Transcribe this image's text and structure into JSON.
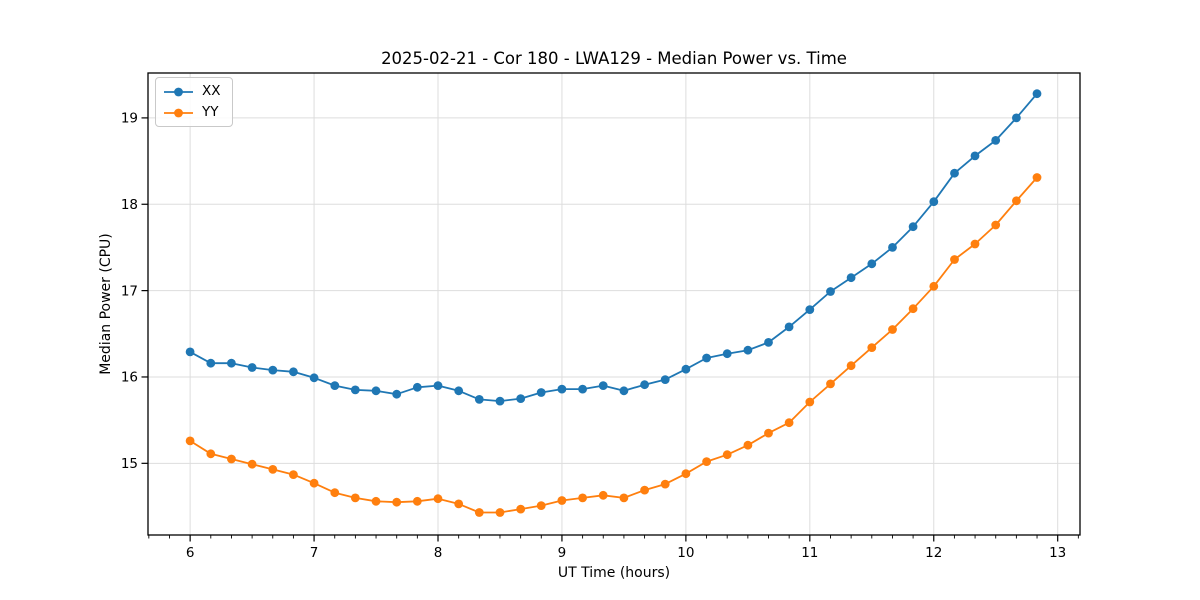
{
  "chart_data": {
    "type": "line",
    "title": "2025-02-21 - Cor 180 - LWA129 - Median Power vs. Time",
    "xlabel": "UT Time (hours)",
    "ylabel": "Median Power (CPU)",
    "x": [
      6.0,
      6.167,
      6.333,
      6.5,
      6.667,
      6.833,
      7.0,
      7.167,
      7.333,
      7.5,
      7.667,
      7.833,
      8.0,
      8.167,
      8.333,
      8.5,
      8.667,
      8.833,
      9.0,
      9.167,
      9.333,
      9.5,
      9.667,
      9.833,
      10.0,
      10.167,
      10.333,
      10.5,
      10.667,
      10.833,
      11.0,
      11.167,
      11.333,
      11.5,
      11.667,
      11.833,
      12.0,
      12.167,
      12.333,
      12.5,
      12.667,
      12.833
    ],
    "series": [
      {
        "name": "XX",
        "color": "#1f77b4",
        "marker": "circle",
        "values": [
          16.29,
          16.16,
          16.16,
          16.11,
          16.08,
          16.06,
          15.99,
          15.9,
          15.85,
          15.84,
          15.8,
          15.88,
          15.9,
          15.84,
          15.74,
          15.72,
          15.75,
          15.82,
          15.86,
          15.86,
          15.9,
          15.84,
          15.91,
          15.97,
          16.09,
          16.22,
          16.27,
          16.31,
          16.4,
          16.58,
          16.78,
          16.99,
          17.15,
          17.31,
          17.5,
          17.74,
          18.03,
          18.36,
          18.56,
          18.74,
          19.0,
          19.28
        ]
      },
      {
        "name": "YY",
        "color": "#ff7f0e",
        "marker": "circle",
        "values": [
          15.26,
          15.11,
          15.05,
          14.99,
          14.93,
          14.87,
          14.77,
          14.66,
          14.6,
          14.56,
          14.55,
          14.56,
          14.59,
          14.53,
          14.43,
          14.43,
          14.47,
          14.51,
          14.57,
          14.6,
          14.63,
          14.6,
          14.69,
          14.76,
          14.88,
          15.02,
          15.1,
          15.21,
          15.35,
          15.47,
          15.71,
          15.92,
          16.13,
          16.34,
          16.55,
          16.79,
          17.05,
          17.36,
          17.54,
          17.76,
          18.04,
          18.31
        ]
      }
    ],
    "xlim": [
      5.66,
      13.18
    ],
    "ylim": [
      14.17,
      19.52
    ],
    "xticks": [
      6,
      7,
      8,
      9,
      10,
      11,
      12,
      13
    ],
    "yticks": [
      15,
      16,
      17,
      18,
      19
    ],
    "x_minor_step": 0.1666667,
    "grid": true,
    "legend": {
      "position": "upper left",
      "entries": [
        "XX",
        "YY"
      ]
    }
  },
  "style": {
    "background": "#ffffff",
    "grid_color": "#dddddd",
    "spine_color": "#000000",
    "tick_color": "#000000",
    "text_color": "#000000"
  }
}
